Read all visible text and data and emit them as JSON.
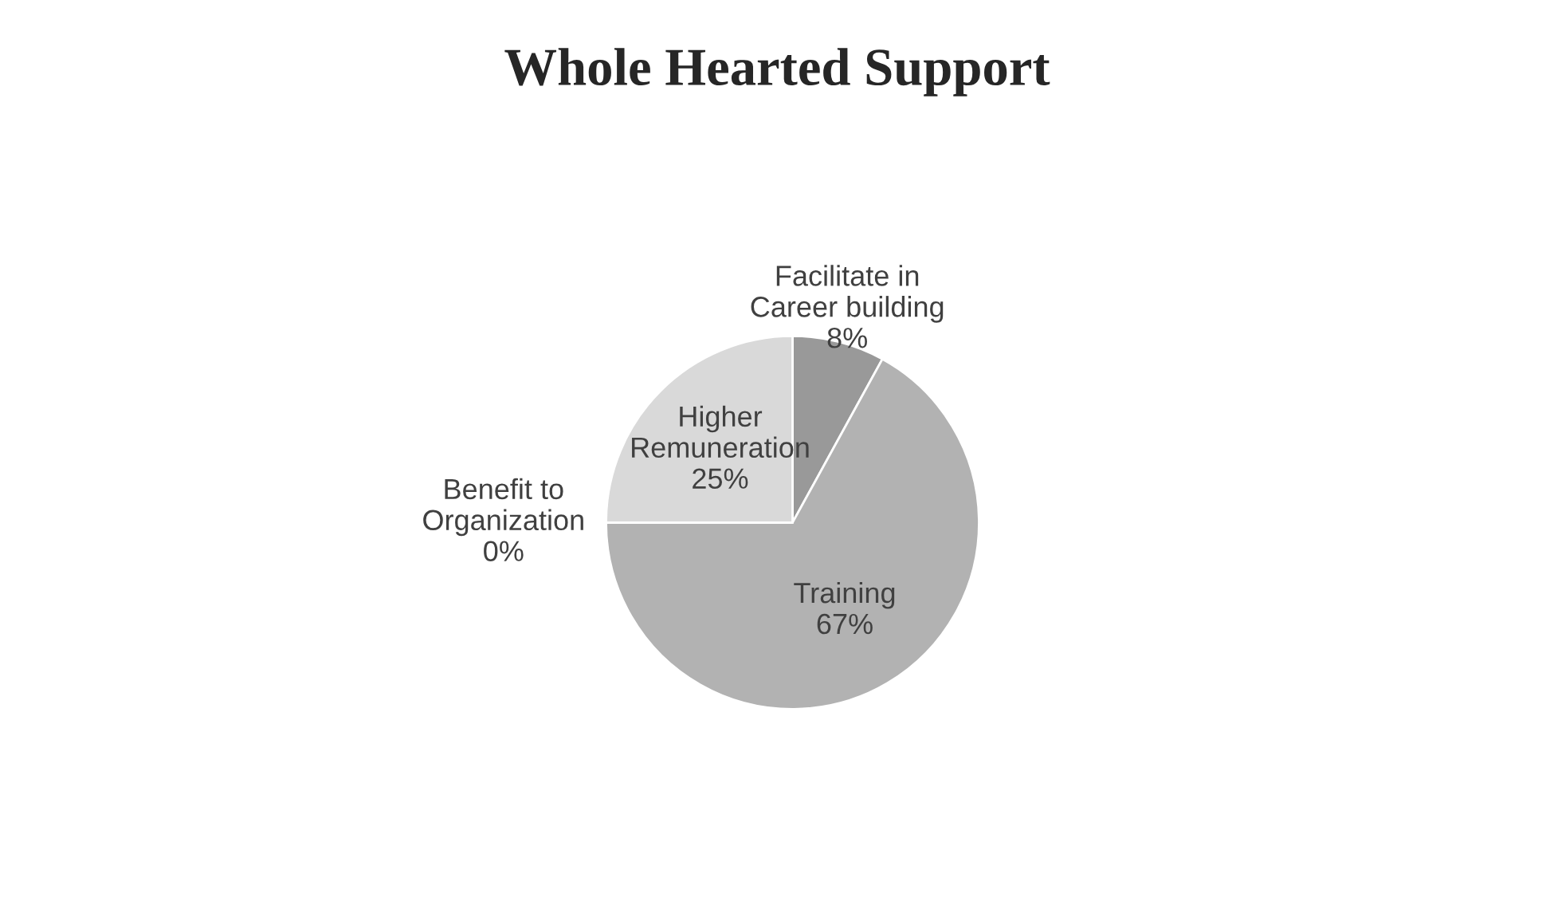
{
  "chart_data": {
    "type": "pie",
    "title": "Whole Hearted Support",
    "categories": [
      "Facilitate in\nCareer building",
      "Training",
      "Benefit to\nOrganization",
      "Higher\nRemuneration"
    ],
    "values": [
      8,
      67,
      0,
      25
    ],
    "colors": [
      "#999999",
      "#b2b2b2",
      "#808080",
      "#d9d9d9"
    ],
    "value_labels": [
      "8%",
      "67%",
      "0%",
      "25%"
    ],
    "legend": false
  }
}
